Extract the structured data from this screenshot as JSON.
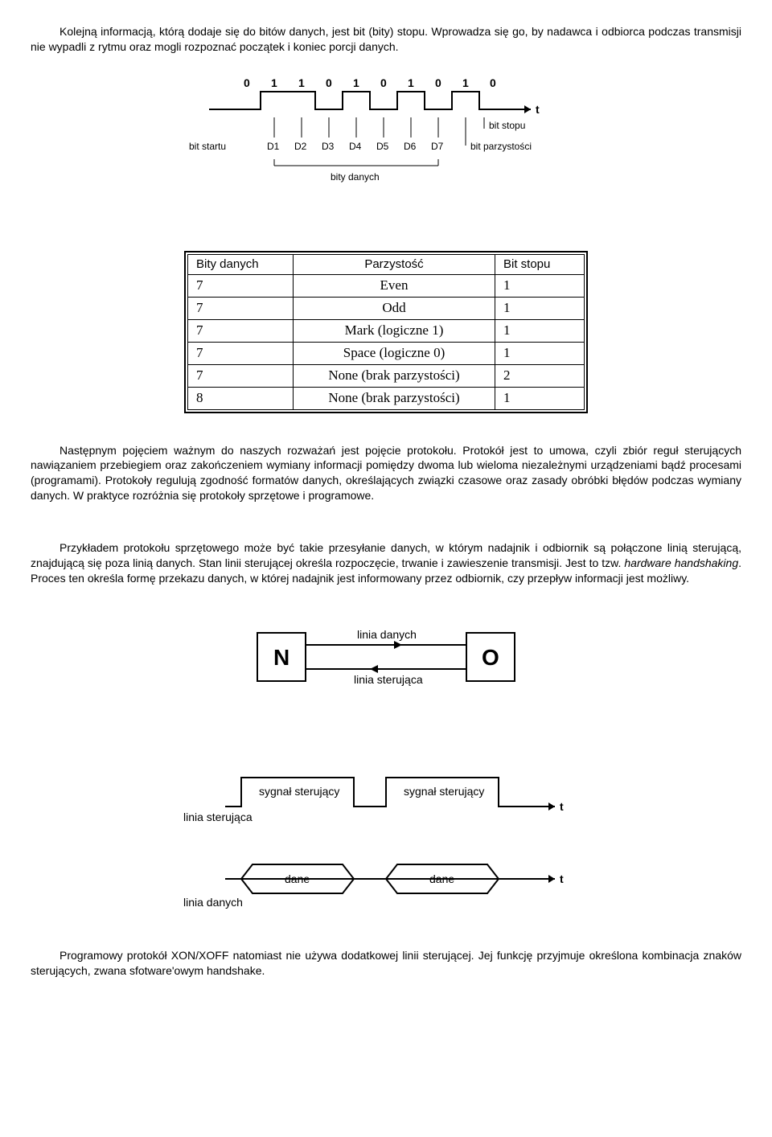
{
  "para1": "Kolejną informacją, którą dodaje się do bitów danych, jest bit (bity) stopu. Wprowadza się go, by nadawca i odbiorca podczas transmisji nie wypadli z rytmu oraz mogli rozpoznać początek i koniec porcji danych.",
  "bitDiagram": {
    "bits": [
      "0",
      "1",
      "1",
      "0",
      "1",
      "0",
      "1",
      "0",
      "1",
      "0"
    ],
    "labels": {
      "bitStartu": "bit startu",
      "d": [
        "D1",
        "D2",
        "D3",
        "D4",
        "D5",
        "D6",
        "D7"
      ],
      "bitStopu": "bit stopu",
      "bitParzystosci": "bit parzystości",
      "bityDanych": "bity danych",
      "t": "t"
    },
    "colors": {
      "stroke": "#000000",
      "text": "#000000",
      "bg": "#ffffff"
    },
    "lineWidth": 2,
    "fontSize": 14
  },
  "table": {
    "headers": [
      "Bity danych",
      "Parzystość",
      "Bit stopu"
    ],
    "rows": [
      [
        "7",
        "Even",
        "1"
      ],
      [
        "7",
        "Odd",
        "1"
      ],
      [
        "7",
        "Mark (logiczne 1)",
        "1"
      ],
      [
        "7",
        "Space (logiczne 0)",
        "1"
      ],
      [
        "7",
        "None (brak parzystości)",
        "2"
      ],
      [
        "8",
        "None (brak parzystości)",
        "1"
      ]
    ]
  },
  "para2a": "Następnym pojęciem ważnym do naszych rozważań jest pojęcie protokołu. Protokół jest to umowa, czyli zbiór reguł sterujących nawiązaniem przebiegiem oraz zakończeniem wymiany informacji pomiędzy dwoma lub wieloma niezależnymi urządzeniami bądź procesami (programami). Protokoły regulują zgodność formatów danych, określających związki czasowe oraz zasady obróbki błędów podczas wymiany danych. W praktyce rozróżnia się protokoły sprzętowe i programowe.",
  "para3a": "Przykładem protokołu sprzętowego może być takie przesyłanie danych, w którym nadajnik i odbiornik są połączone linią sterującą, znajdującą się poza linią danych. Stan linii sterującej określa rozpoczęcie, trwanie i zawieszenie transmisji. Jest to tzw. ",
  "para3b": "hardware handshaking",
  "para3c": ". Proces ten określa formę przekazu danych, w której nadajnik jest informowany przez odbiornik, czy przepływ informacji jest możliwy.",
  "linkDiagram": {
    "n": "N",
    "o": "O",
    "liniaDanych": "linia danych",
    "liniaSterujaca": "linia sterująca",
    "stroke": "#000000",
    "lineWidth": 2,
    "fontSize": 14,
    "boxFontSize": 28
  },
  "timingDiagram": {
    "sygnalSterujacy": "sygnał sterujący",
    "liniaSterujaca": "linia sterująca",
    "dane": "dane",
    "liniaDanych": "linia danych",
    "t": "t",
    "stroke": "#000000",
    "lineWidth": 2,
    "fontSize": 14
  },
  "para4": "Programowy protokół XON/XOFF natomiast nie używa dodatkowej linii sterującej. Jej funkcję przyjmuje określona kombinacja znaków sterujących, zwana sfotware'owym handshake."
}
